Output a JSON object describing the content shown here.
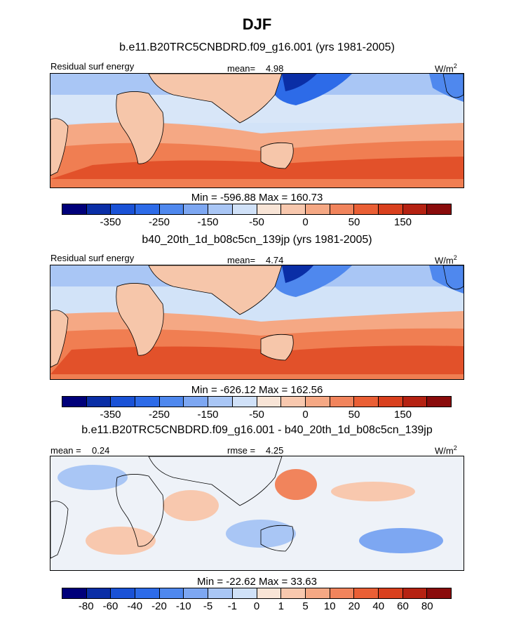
{
  "figure": {
    "title": "DJF",
    "units_base": "W/m",
    "units_exp": "2"
  },
  "panels": [
    {
      "subtitle": "b.e11.B20TRC5CNBDRD.f09_g16.001 (yrs 1981-2005)",
      "left_label": "Residual surf energy",
      "stat1_label": "mean=",
      "stat1_value": "4.98",
      "minmax": "Min = -596.88 Max = 160.73",
      "colorbar_ticks": [
        "-350",
        "-250",
        "-150",
        "-50",
        "0",
        "50",
        "150"
      ]
    },
    {
      "subtitle": "b40_20th_1d_b08c5cn_139jp (yrs 1981-2005)",
      "left_label": "Residual surf energy",
      "stat1_label": "mean=",
      "stat1_value": "4.74",
      "minmax": "Min = -626.12 Max = 162.56",
      "colorbar_ticks": [
        "-350",
        "-250",
        "-150",
        "-50",
        "0",
        "50",
        "150"
      ]
    },
    {
      "subtitle": "b.e11.B20TRC5CNBDRD.f09_g16.001 - b40_20th_1d_b08c5cn_139jp",
      "left_label": "mean =",
      "left_value": "0.24",
      "stat1_label": "rmse =",
      "stat1_value": "4.25",
      "minmax": "Min = -22.62 Max = 33.63",
      "colorbar_ticks": [
        "-80",
        "-60",
        "-40",
        "-20",
        "-10",
        "-5",
        "-1",
        "0",
        "1",
        "5",
        "10",
        "20",
        "40",
        "60",
        "80"
      ]
    }
  ],
  "colors": {
    "colorbar_16": [
      "#00007a",
      "#0a2ea6",
      "#1a52d6",
      "#2d6be8",
      "#4f88ee",
      "#7da7f2",
      "#a9c6f5",
      "#d0e1f8",
      "#f8e4d6",
      "#f8c8ae",
      "#f5a884",
      "#f1845c",
      "#ea5f35",
      "#d9401e",
      "#b52212",
      "#8a0c0c"
    ],
    "ocean_blue": "#d2e3f8",
    "ocean_red": "#f07e52",
    "ocean_deep_red": "#e2512a",
    "land": "#f6c6aa"
  }
}
